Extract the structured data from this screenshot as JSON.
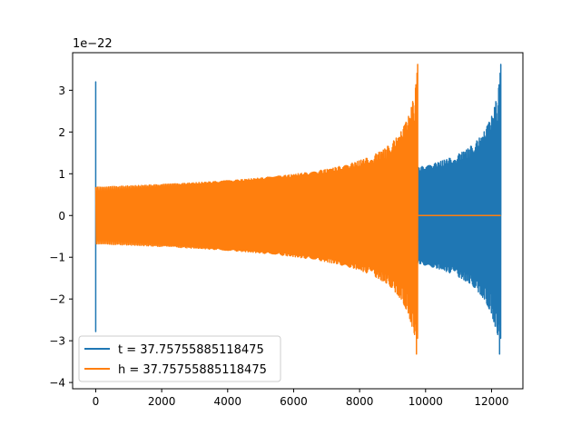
{
  "figure": {
    "background": "#ffffff"
  },
  "chart_data": {
    "type": "line",
    "title": "",
    "xlabel": "",
    "ylabel": "",
    "y_offset_label": "1e−22",
    "xlim": [
      -700,
      12950
    ],
    "ylim": [
      -4.15,
      3.9
    ],
    "x_ticks": [
      0,
      2000,
      4000,
      6000,
      8000,
      10000,
      12000
    ],
    "x_tick_labels": [
      "0",
      "2000",
      "4000",
      "6000",
      "8000",
      "10000",
      "12000"
    ],
    "y_ticks": [
      -4,
      -3,
      -2,
      -1,
      0,
      1,
      2,
      3
    ],
    "y_tick_labels": [
      "−4",
      "−3",
      "−2",
      "−1",
      "0",
      "1",
      "2",
      "3"
    ],
    "grid": false,
    "legend_position": "lower-left",
    "series": [
      {
        "name": "t = 37.75755885118475",
        "color": "#1f77b4",
        "start_x": 0,
        "end_x": 12280,
        "zero_span": [
          0,
          2520
        ],
        "initial_spike": [
          3.2,
          -2.78
        ],
        "oscillation_start_x": 2520,
        "amplitude_at_start": 0.68,
        "peak_amplitude": 3.62,
        "min_value": -3.7,
        "cycles": 300
      },
      {
        "name": "h = 37.75755885118475",
        "color": "#ff7f0e",
        "start_x": 0,
        "end_x": 12280,
        "zero_span": [
          9760,
          12280
        ],
        "oscillation_start_x": 0,
        "oscillation_end_x": 9760,
        "amplitude_at_start": 0.68,
        "peak_amplitude": 3.62,
        "min_value": -3.7,
        "cycles": 300
      }
    ]
  }
}
